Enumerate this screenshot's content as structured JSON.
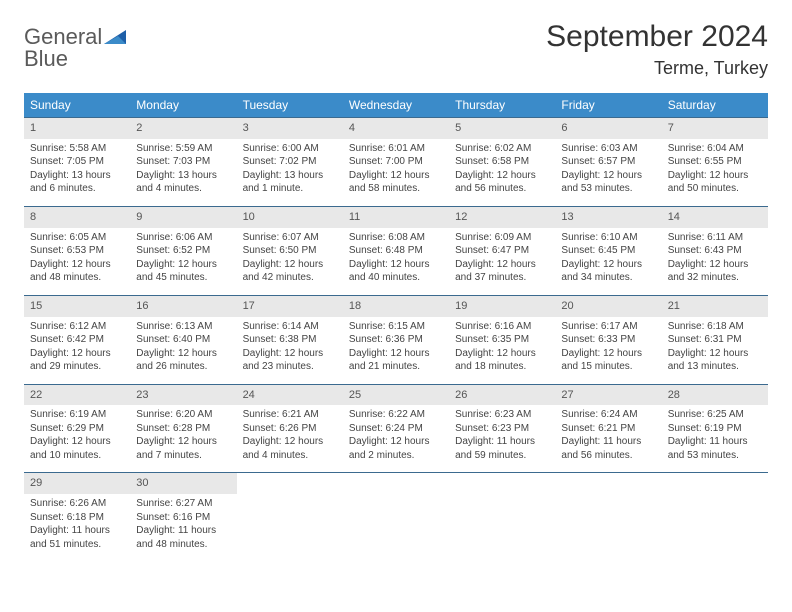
{
  "logo": {
    "word1": "General",
    "word2": "Blue"
  },
  "title": "September 2024",
  "location": "Terme, Turkey",
  "colors": {
    "header_bg": "#3b8bc9",
    "header_text": "#ffffff",
    "row_border": "#3b6a8f",
    "daynum_bg": "#e8e8e8",
    "body_text": "#444444",
    "logo_gray": "#5a5a5a",
    "logo_blue": "#3b82c4"
  },
  "day_names": [
    "Sunday",
    "Monday",
    "Tuesday",
    "Wednesday",
    "Thursday",
    "Friday",
    "Saturday"
  ],
  "weeks": [
    [
      {
        "n": "1",
        "sr": "Sunrise: 5:58 AM",
        "ss": "Sunset: 7:05 PM",
        "dl1": "Daylight: 13 hours",
        "dl2": "and 6 minutes."
      },
      {
        "n": "2",
        "sr": "Sunrise: 5:59 AM",
        "ss": "Sunset: 7:03 PM",
        "dl1": "Daylight: 13 hours",
        "dl2": "and 4 minutes."
      },
      {
        "n": "3",
        "sr": "Sunrise: 6:00 AM",
        "ss": "Sunset: 7:02 PM",
        "dl1": "Daylight: 13 hours",
        "dl2": "and 1 minute."
      },
      {
        "n": "4",
        "sr": "Sunrise: 6:01 AM",
        "ss": "Sunset: 7:00 PM",
        "dl1": "Daylight: 12 hours",
        "dl2": "and 58 minutes."
      },
      {
        "n": "5",
        "sr": "Sunrise: 6:02 AM",
        "ss": "Sunset: 6:58 PM",
        "dl1": "Daylight: 12 hours",
        "dl2": "and 56 minutes."
      },
      {
        "n": "6",
        "sr": "Sunrise: 6:03 AM",
        "ss": "Sunset: 6:57 PM",
        "dl1": "Daylight: 12 hours",
        "dl2": "and 53 minutes."
      },
      {
        "n": "7",
        "sr": "Sunrise: 6:04 AM",
        "ss": "Sunset: 6:55 PM",
        "dl1": "Daylight: 12 hours",
        "dl2": "and 50 minutes."
      }
    ],
    [
      {
        "n": "8",
        "sr": "Sunrise: 6:05 AM",
        "ss": "Sunset: 6:53 PM",
        "dl1": "Daylight: 12 hours",
        "dl2": "and 48 minutes."
      },
      {
        "n": "9",
        "sr": "Sunrise: 6:06 AM",
        "ss": "Sunset: 6:52 PM",
        "dl1": "Daylight: 12 hours",
        "dl2": "and 45 minutes."
      },
      {
        "n": "10",
        "sr": "Sunrise: 6:07 AM",
        "ss": "Sunset: 6:50 PM",
        "dl1": "Daylight: 12 hours",
        "dl2": "and 42 minutes."
      },
      {
        "n": "11",
        "sr": "Sunrise: 6:08 AM",
        "ss": "Sunset: 6:48 PM",
        "dl1": "Daylight: 12 hours",
        "dl2": "and 40 minutes."
      },
      {
        "n": "12",
        "sr": "Sunrise: 6:09 AM",
        "ss": "Sunset: 6:47 PM",
        "dl1": "Daylight: 12 hours",
        "dl2": "and 37 minutes."
      },
      {
        "n": "13",
        "sr": "Sunrise: 6:10 AM",
        "ss": "Sunset: 6:45 PM",
        "dl1": "Daylight: 12 hours",
        "dl2": "and 34 minutes."
      },
      {
        "n": "14",
        "sr": "Sunrise: 6:11 AM",
        "ss": "Sunset: 6:43 PM",
        "dl1": "Daylight: 12 hours",
        "dl2": "and 32 minutes."
      }
    ],
    [
      {
        "n": "15",
        "sr": "Sunrise: 6:12 AM",
        "ss": "Sunset: 6:42 PM",
        "dl1": "Daylight: 12 hours",
        "dl2": "and 29 minutes."
      },
      {
        "n": "16",
        "sr": "Sunrise: 6:13 AM",
        "ss": "Sunset: 6:40 PM",
        "dl1": "Daylight: 12 hours",
        "dl2": "and 26 minutes."
      },
      {
        "n": "17",
        "sr": "Sunrise: 6:14 AM",
        "ss": "Sunset: 6:38 PM",
        "dl1": "Daylight: 12 hours",
        "dl2": "and 23 minutes."
      },
      {
        "n": "18",
        "sr": "Sunrise: 6:15 AM",
        "ss": "Sunset: 6:36 PM",
        "dl1": "Daylight: 12 hours",
        "dl2": "and 21 minutes."
      },
      {
        "n": "19",
        "sr": "Sunrise: 6:16 AM",
        "ss": "Sunset: 6:35 PM",
        "dl1": "Daylight: 12 hours",
        "dl2": "and 18 minutes."
      },
      {
        "n": "20",
        "sr": "Sunrise: 6:17 AM",
        "ss": "Sunset: 6:33 PM",
        "dl1": "Daylight: 12 hours",
        "dl2": "and 15 minutes."
      },
      {
        "n": "21",
        "sr": "Sunrise: 6:18 AM",
        "ss": "Sunset: 6:31 PM",
        "dl1": "Daylight: 12 hours",
        "dl2": "and 13 minutes."
      }
    ],
    [
      {
        "n": "22",
        "sr": "Sunrise: 6:19 AM",
        "ss": "Sunset: 6:29 PM",
        "dl1": "Daylight: 12 hours",
        "dl2": "and 10 minutes."
      },
      {
        "n": "23",
        "sr": "Sunrise: 6:20 AM",
        "ss": "Sunset: 6:28 PM",
        "dl1": "Daylight: 12 hours",
        "dl2": "and 7 minutes."
      },
      {
        "n": "24",
        "sr": "Sunrise: 6:21 AM",
        "ss": "Sunset: 6:26 PM",
        "dl1": "Daylight: 12 hours",
        "dl2": "and 4 minutes."
      },
      {
        "n": "25",
        "sr": "Sunrise: 6:22 AM",
        "ss": "Sunset: 6:24 PM",
        "dl1": "Daylight: 12 hours",
        "dl2": "and 2 minutes."
      },
      {
        "n": "26",
        "sr": "Sunrise: 6:23 AM",
        "ss": "Sunset: 6:23 PM",
        "dl1": "Daylight: 11 hours",
        "dl2": "and 59 minutes."
      },
      {
        "n": "27",
        "sr": "Sunrise: 6:24 AM",
        "ss": "Sunset: 6:21 PM",
        "dl1": "Daylight: 11 hours",
        "dl2": "and 56 minutes."
      },
      {
        "n": "28",
        "sr": "Sunrise: 6:25 AM",
        "ss": "Sunset: 6:19 PM",
        "dl1": "Daylight: 11 hours",
        "dl2": "and 53 minutes."
      }
    ],
    [
      {
        "n": "29",
        "sr": "Sunrise: 6:26 AM",
        "ss": "Sunset: 6:18 PM",
        "dl1": "Daylight: 11 hours",
        "dl2": "and 51 minutes."
      },
      {
        "n": "30",
        "sr": "Sunrise: 6:27 AM",
        "ss": "Sunset: 6:16 PM",
        "dl1": "Daylight: 11 hours",
        "dl2": "and 48 minutes."
      },
      null,
      null,
      null,
      null,
      null
    ]
  ]
}
